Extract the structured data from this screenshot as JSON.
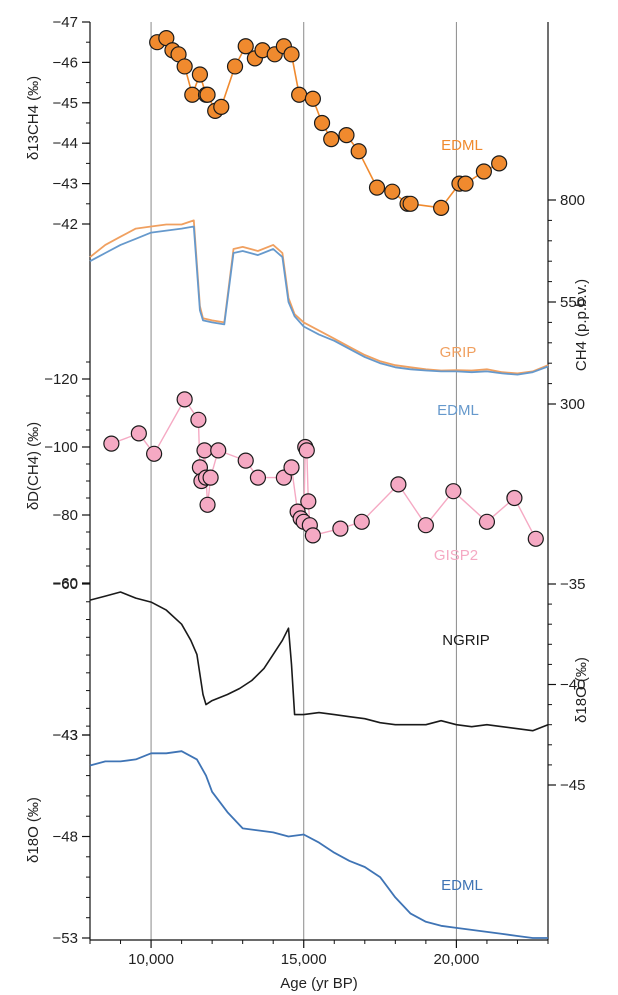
{
  "chart_data": {
    "type": "line",
    "x_axis": {
      "label": "Age (yr BP)",
      "range": [
        8000,
        23000
      ],
      "ticks": [
        10000,
        15000,
        20000
      ],
      "tick_labels": [
        "10,000",
        "15,000",
        "20,000"
      ],
      "vertical_gridlines_at": [
        10000,
        15000,
        20000
      ]
    },
    "panels": [
      {
        "id": "d13c",
        "axis_label": "δ13CH4 (‰)",
        "axis_side": "left",
        "range": [
          -41.8,
          -47
        ],
        "ticks": [
          -47,
          -46,
          -45,
          -44,
          -43,
          -42
        ],
        "tick_labels": [
          "−47",
          "−46",
          "−45",
          "−44",
          "−43",
          "−42"
        ],
        "series": [
          {
            "name": "EDML",
            "color": "#f08a2e",
            "marker": "circle",
            "x": [
              10200,
              10500,
              10700,
              10900,
              11100,
              11350,
              11600,
              11800,
              11850,
              12100,
              12300,
              12750,
              13100,
              13400,
              13650,
              14050,
              14350,
              14600,
              14850,
              15300,
              15600,
              15900,
              16400,
              16800,
              17400,
              17900,
              18400,
              18500,
              19500,
              20100,
              20300,
              20900,
              21400
            ],
            "y": [
              -46.5,
              -46.6,
              -46.3,
              -46.2,
              -45.9,
              -45.2,
              -45.7,
              -45.2,
              -45.2,
              -44.8,
              -44.9,
              -45.9,
              -46.4,
              -46.1,
              -46.3,
              -46.2,
              -46.4,
              -46.2,
              -45.2,
              -45.1,
              -44.5,
              -44.1,
              -44.2,
              -43.8,
              -42.9,
              -42.8,
              -42.5,
              -42.5,
              -42.4,
              -43.0,
              -43.0,
              -43.3,
              -43.5
            ]
          }
        ]
      },
      {
        "id": "ch4",
        "axis_label": "CH4 (p.p.b.v.)",
        "axis_side": "right",
        "range": [
          300,
          800
        ],
        "ticks": [
          300,
          550,
          800
        ],
        "tick_labels": [
          "300",
          "550",
          "800"
        ],
        "series": [
          {
            "name": "GRIP",
            "color": "#f0a060",
            "x": [
              8000,
              8500,
              9000,
              9500,
              10000,
              10500,
              11000,
              11400,
              11600,
              11700,
              12000,
              12400,
              12700,
              13000,
              13500,
              14000,
              14300,
              14500,
              14700,
              15000,
              15500,
              16000,
              16500,
              17000,
              17500,
              18000,
              18500,
              19000,
              19500,
              20000,
              20500,
              21000,
              21500,
              22000,
              22500,
              23000
            ],
            "y": [
              660,
              690,
              710,
              730,
              735,
              740,
              740,
              750,
              540,
              510,
              505,
              500,
              680,
              685,
              675,
              690,
              670,
              560,
              520,
              500,
              480,
              460,
              440,
              420,
              405,
              395,
              390,
              385,
              382,
              383,
              382,
              385,
              378,
              375,
              380,
              395
            ]
          },
          {
            "name": "EDML",
            "color": "#6699cc",
            "x": [
              8000,
              8500,
              9000,
              9500,
              10000,
              10500,
              11000,
              11400,
              11600,
              11700,
              12000,
              12400,
              12700,
              13000,
              13500,
              14000,
              14300,
              14500,
              14700,
              15000,
              15500,
              16000,
              16500,
              17000,
              17500,
              18000,
              18500,
              19000,
              19500,
              20000,
              20500,
              21000,
              21500,
              22000,
              22500,
              23000
            ],
            "y": [
              650,
              670,
              690,
              705,
              720,
              725,
              730,
              735,
              530,
              505,
              500,
              495,
              670,
              675,
              665,
              680,
              660,
              550,
              515,
              490,
              470,
              455,
              435,
              415,
              400,
              390,
              385,
              382,
              380,
              380,
              378,
              380,
              375,
              372,
              378,
              392
            ]
          }
        ]
      },
      {
        "id": "dD",
        "axis_label": "δD(CH4) (‰)",
        "axis_side": "left",
        "range": [
          -128,
          -64
        ],
        "ticks": [
          -120,
          -100,
          -80,
          -60
        ],
        "tick_labels": [
          "−120",
          "−100",
          "−80",
          "−60"
        ],
        "series": [
          {
            "name": "GISP2",
            "color": "#f5a9c3",
            "marker": "circle",
            "x": [
              8700,
              9600,
              10100,
              11100,
              11550,
              11600,
              11650,
              11750,
              11800,
              11850,
              11950,
              12200,
              13100,
              13500,
              14350,
              14600,
              14800,
              14900,
              15000,
              15050,
              15100,
              15150,
              15200,
              15300,
              16200,
              16900,
              18100,
              19000,
              19900,
              21000,
              21900,
              22600
            ],
            "y": [
              -101,
              -104,
              -98,
              -114,
              -108,
              -94,
              -90,
              -99,
              -91,
              -83,
              -91,
              -99,
              -96,
              -91,
              -91,
              -94,
              -81,
              -79,
              -78,
              -100,
              -99,
              -84,
              -77,
              -74,
              -76,
              -78,
              -89,
              -77,
              -87,
              -78,
              -85,
              -73
            ]
          }
        ]
      },
      {
        "id": "ngrip",
        "axis_label": "δ18O (‰)",
        "axis_side": "right",
        "range": [
          -45,
          -35
        ],
        "ticks": [
          -45,
          -40,
          -35
        ],
        "tick_labels": [
          "−45",
          "−40",
          "−35"
        ],
        "left_axis_ticks": [
          -60,
          -43
        ],
        "left_axis_tick_labels": [
          "−60",
          "−43"
        ],
        "series": [
          {
            "name": "NGRIP",
            "color": "#1a1a1a",
            "x": [
              8000,
              8500,
              9000,
              9500,
              10000,
              10500,
              11000,
              11300,
              11500,
              11700,
              11800,
              12000,
              12500,
              12900,
              13300,
              13700,
              14000,
              14300,
              14500,
              14600,
              14700,
              15000,
              15500,
              16000,
              16500,
              17000,
              17500,
              18000,
              18500,
              19000,
              19500,
              20000,
              20500,
              21000,
              21500,
              22000,
              22500,
              23000
            ],
            "y": [
              -35.8,
              -35.6,
              -35.4,
              -35.7,
              -35.9,
              -36.3,
              -37.0,
              -37.8,
              -38.5,
              -40.5,
              -41.0,
              -40.8,
              -40.5,
              -40.2,
              -39.8,
              -39.2,
              -38.5,
              -37.8,
              -37.2,
              -39.0,
              -41.5,
              -41.5,
              -41.4,
              -41.5,
              -41.6,
              -41.7,
              -41.9,
              -42.0,
              -42.0,
              -42.0,
              -41.8,
              -42.0,
              -42.1,
              -42.0,
              -42.1,
              -42.2,
              -42.3,
              -42.0
            ]
          }
        ]
      },
      {
        "id": "edml-d18o",
        "axis_label": "δ18O (‰)",
        "axis_side": "left",
        "range": [
          -53,
          -43
        ],
        "ticks": [
          -53,
          -48,
          -43
        ],
        "tick_labels": [
          "−53",
          "−48",
          "−43"
        ],
        "series": [
          {
            "name": "EDML",
            "color": "#3f74b5",
            "x": [
              8000,
              8500,
              9000,
              9500,
              10000,
              10500,
              11000,
              11500,
              11800,
              12000,
              12500,
              13000,
              13500,
              14000,
              14500,
              15000,
              15500,
              16000,
              16500,
              17000,
              17500,
              18000,
              18500,
              19000,
              19500,
              20000,
              20500,
              21000,
              21500,
              22000,
              22500,
              23000
            ],
            "y": [
              -44.5,
              -44.3,
              -44.3,
              -44.2,
              -43.9,
              -43.9,
              -43.8,
              -44.2,
              -45.0,
              -45.8,
              -46.8,
              -47.6,
              -47.7,
              -47.8,
              -48.0,
              -47.9,
              -48.3,
              -48.8,
              -49.2,
              -49.5,
              -50.0,
              -51.0,
              -51.8,
              -52.2,
              -52.4,
              -52.5,
              -52.6,
              -52.7,
              -52.8,
              -52.9,
              -53.0,
              -53.0
            ]
          }
        ]
      }
    ]
  }
}
